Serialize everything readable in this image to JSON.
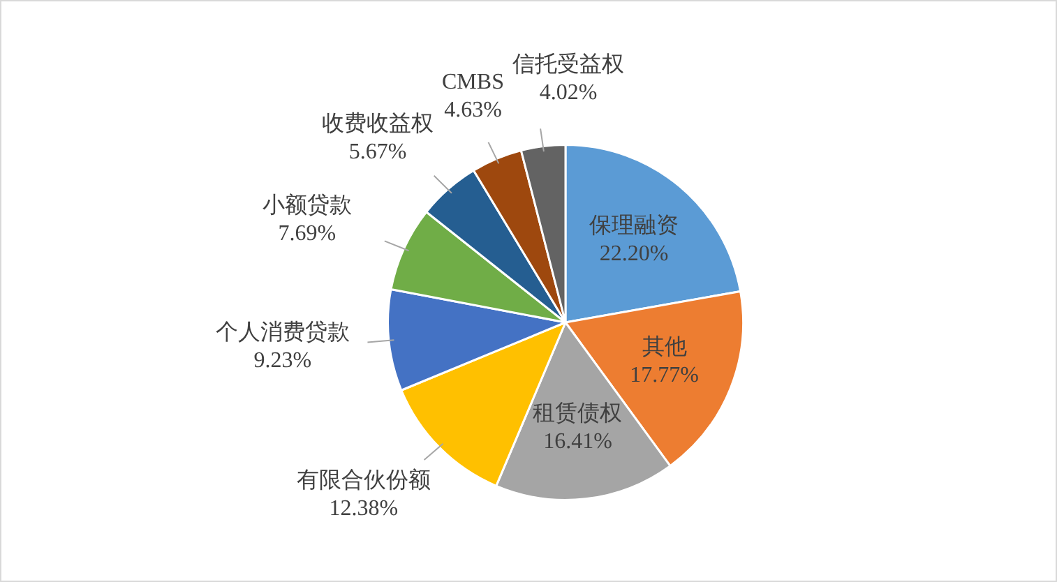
{
  "chart_data": {
    "type": "pie",
    "categories": [
      "保理融资",
      "其他",
      "租赁债权",
      "有限合伙份额",
      "个人消费贷款",
      "小额贷款",
      "收费收益权",
      "CMBS",
      "信托受益权"
    ],
    "values": [
      22.2,
      17.77,
      16.41,
      12.38,
      9.23,
      7.69,
      5.67,
      4.63,
      4.02
    ],
    "value_labels": [
      "22.20%",
      "17.77%",
      "16.41%",
      "12.38%",
      "9.23%",
      "7.69%",
      "5.67%",
      "4.63%",
      "4.02%"
    ],
    "colors": [
      "#5b9bd5",
      "#ed7d31",
      "#a5a5a5",
      "#ffc000",
      "#4472c4",
      "#70ad47",
      "#255e91",
      "#9e480e",
      "#636363"
    ],
    "legend": false
  }
}
